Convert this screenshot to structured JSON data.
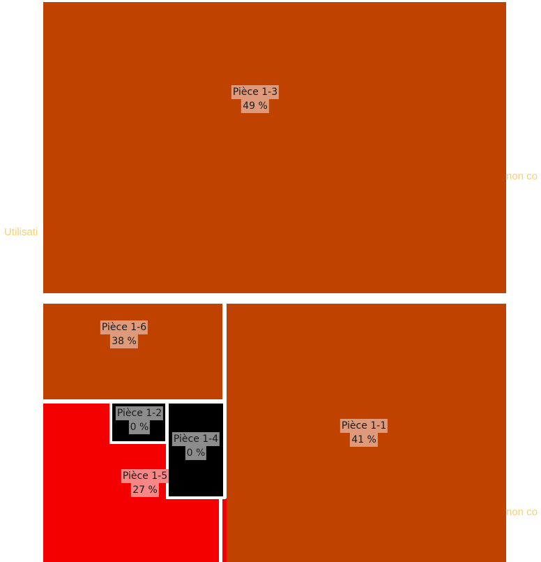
{
  "background_texts": [
    "Utilisati",
    "non co",
    "non co"
  ],
  "tiles": [
    {
      "name": "Pièce 1-3",
      "percent": "49 %",
      "color": "#bf4200"
    },
    {
      "name": "Pièce 1-6",
      "percent": "38 %",
      "color": "#bf4200"
    },
    {
      "name": "Pièce 1-1",
      "percent": "41 %",
      "color": "#bf4200"
    },
    {
      "name": "Pièce 1-5",
      "percent": "27 %",
      "color": "#f50000"
    },
    {
      "name": "Pièce 1-2",
      "percent": "0 %",
      "color": "#000000"
    },
    {
      "name": "Pièce 1-4",
      "percent": "0 %",
      "color": "#000000"
    }
  ]
}
